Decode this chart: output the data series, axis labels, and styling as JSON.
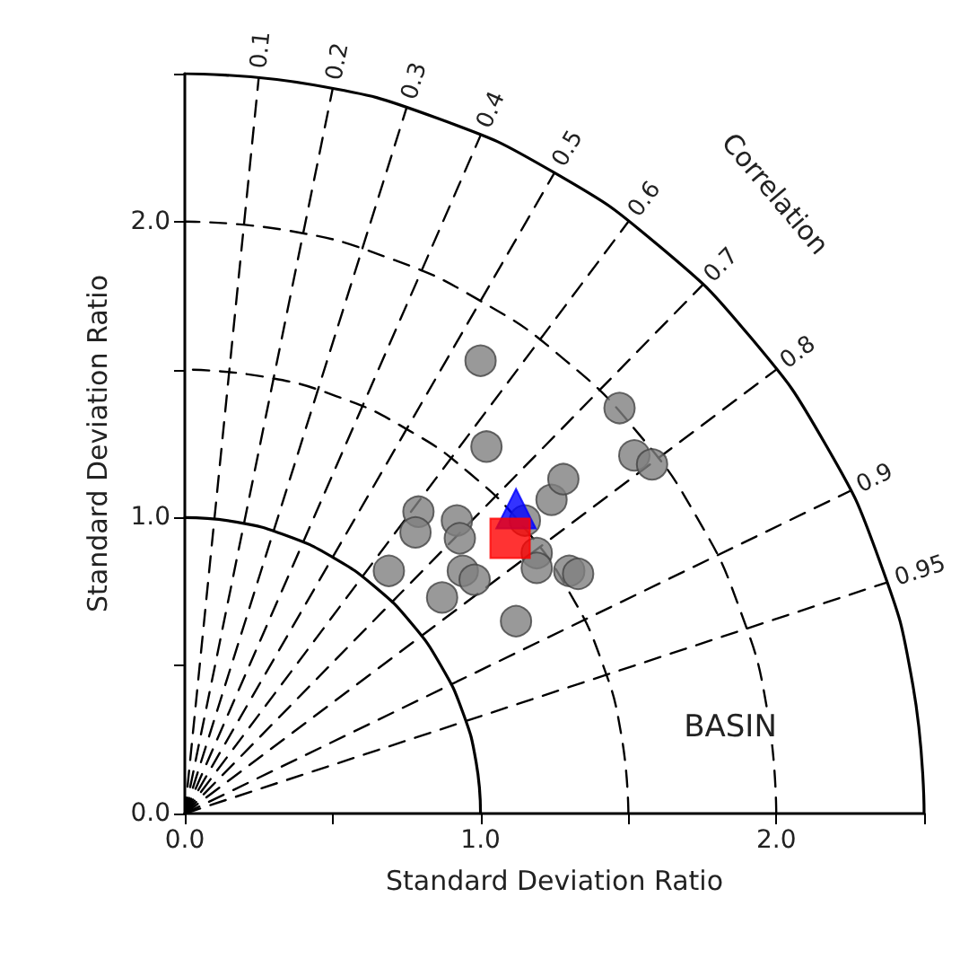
{
  "chart_data": {
    "type": "scatter",
    "xlabel": "Standard Deviation Ratio",
    "ylabel": "Standard Deviation Ratio",
    "xlim": [
      0,
      2.5
    ],
    "ylim": [
      0,
      2.5
    ],
    "xticks": [
      {
        "value": 0,
        "label": "0.0"
      },
      {
        "value": 0.5,
        "label": null
      },
      {
        "value": 1,
        "label": "1.0"
      },
      {
        "value": 1.5,
        "label": null
      },
      {
        "value": 2,
        "label": "2.0"
      },
      {
        "value": 2.5,
        "label": null
      }
    ],
    "yticks": [
      {
        "value": 0,
        "label": "0.0"
      },
      {
        "value": 0.5,
        "label": null
      },
      {
        "value": 1,
        "label": "1.0"
      },
      {
        "value": 1.5,
        "label": null
      },
      {
        "value": 2,
        "label": "2.0"
      },
      {
        "value": 2.5,
        "label": null
      }
    ],
    "series": [
      {
        "type": "line",
        "color": "#000000",
        "marker": "none",
        "line_style": "solid",
        "x": [
          1,
          0.985,
          0.94,
          0.866,
          0.766,
          0.643,
          0.5,
          0.342,
          0.174,
          0
        ],
        "values": [
          0,
          0.174,
          0.342,
          0.5,
          0.643,
          0.766,
          0.866,
          0.94,
          0.985,
          1
        ]
      },
      {
        "type": "line",
        "color": "#000000",
        "marker": "none",
        "line_style": "dashed",
        "x": [
          1.5,
          1.477,
          1.41,
          1.299,
          1.149,
          0.964,
          0.75,
          0.513,
          0.26,
          0
        ],
        "values": [
          0,
          0.26,
          0.513,
          0.75,
          0.964,
          1.149,
          1.299,
          1.41,
          1.477,
          1.5
        ]
      },
      {
        "type": "line",
        "color": "#000000",
        "marker": "none",
        "line_style": "dashed",
        "x": [
          2,
          1.97,
          1.879,
          1.732,
          1.532,
          1.286,
          1,
          0.684,
          0.347,
          0
        ],
        "values": [
          0,
          0.347,
          0.684,
          1,
          1.286,
          1.532,
          1.732,
          1.879,
          1.97,
          2
        ]
      },
      {
        "type": "line",
        "color": "#000000",
        "marker": "none",
        "line_style": "solid",
        "x": [
          2.5,
          2.462,
          2.349,
          2.165,
          1.915,
          1.607,
          1.25,
          0.855,
          0.434,
          0
        ],
        "values": [
          0,
          0.434,
          0.855,
          1.25,
          1.607,
          1.915,
          2.165,
          2.349,
          2.462,
          2.5
        ]
      },
      {
        "type": "line",
        "color": "#000000",
        "marker": "none",
        "line_style": "dashed",
        "x": [
          0,
          0.25
        ],
        "values": [
          0,
          2.487
        ]
      },
      {
        "type": "line",
        "color": "#000000",
        "marker": "none",
        "line_style": "dashed",
        "x": [
          0,
          0.5
        ],
        "values": [
          0,
          2.449
        ]
      },
      {
        "type": "line",
        "color": "#000000",
        "marker": "none",
        "line_style": "dashed",
        "x": [
          0,
          0.75
        ],
        "values": [
          0,
          2.385
        ]
      },
      {
        "type": "line",
        "color": "#000000",
        "marker": "none",
        "line_style": "dashed",
        "x": [
          0,
          1.0
        ],
        "values": [
          0,
          2.291
        ]
      },
      {
        "type": "line",
        "color": "#000000",
        "marker": "none",
        "line_style": "dashed",
        "x": [
          0,
          1.25
        ],
        "values": [
          0,
          2.165
        ]
      },
      {
        "type": "line",
        "color": "#000000",
        "marker": "none",
        "line_style": "dashed",
        "x": [
          0,
          1.5
        ],
        "values": [
          0,
          2.0
        ]
      },
      {
        "type": "line",
        "color": "#000000",
        "marker": "none",
        "line_style": "dashed",
        "x": [
          0,
          1.75
        ],
        "values": [
          0,
          1.785
        ]
      },
      {
        "type": "line",
        "color": "#000000",
        "marker": "none",
        "line_style": "dashed",
        "x": [
          0,
          2.0
        ],
        "values": [
          0,
          1.5
        ]
      },
      {
        "type": "line",
        "color": "#000000",
        "marker": "none",
        "line_style": "dashed",
        "x": [
          0,
          2.25
        ],
        "values": [
          0,
          1.09
        ]
      },
      {
        "type": "line",
        "color": "#000000",
        "marker": "none",
        "line_style": "dashed",
        "x": [
          0,
          2.375
        ],
        "values": [
          0,
          0.781
        ]
      },
      {
        "color": "#808080",
        "marker": "circle",
        "x": [
          1.0,
          1.02,
          0.79,
          0.78,
          0.92,
          0.93,
          0.69,
          0.87,
          0.94,
          0.98,
          1.12,
          1.19,
          1.19,
          1.24,
          1.28,
          1.3,
          1.33,
          1.47,
          1.52,
          1.58,
          1.15
        ],
        "values": [
          1.53,
          1.24,
          1.02,
          0.95,
          0.99,
          0.93,
          0.82,
          0.73,
          0.82,
          0.79,
          0.65,
          0.88,
          0.83,
          1.06,
          1.13,
          0.82,
          0.81,
          1.37,
          1.21,
          1.18,
          0.99
        ]
      },
      {
        "color": "#0000ff",
        "marker": "triangle",
        "x": [
          1.12
        ],
        "values": [
          1.03
        ]
      },
      {
        "color": "#ff0000",
        "marker": "square",
        "x": [
          1.1
        ],
        "values": [
          0.93
        ]
      }
    ],
    "annotations": [
      {
        "text": "0.1",
        "x": 0.25,
        "y": 2.487
      },
      {
        "text": "0.2",
        "x": 0.5,
        "y": 2.449
      },
      {
        "text": "0.3",
        "x": 0.75,
        "y": 2.385
      },
      {
        "text": "0.4",
        "x": 1.0,
        "y": 2.291
      },
      {
        "text": "0.5",
        "x": 1.25,
        "y": 2.165
      },
      {
        "text": "0.6",
        "x": 1.5,
        "y": 2.0
      },
      {
        "text": "0.7",
        "x": 1.75,
        "y": 1.785
      },
      {
        "text": "0.8",
        "x": 2.0,
        "y": 1.5
      },
      {
        "text": "0.9",
        "x": 2.25,
        "y": 1.09
      },
      {
        "text": "0.95",
        "x": 2.375,
        "y": 0.781
      },
      "Correlation",
      "BASIN"
    ]
  }
}
